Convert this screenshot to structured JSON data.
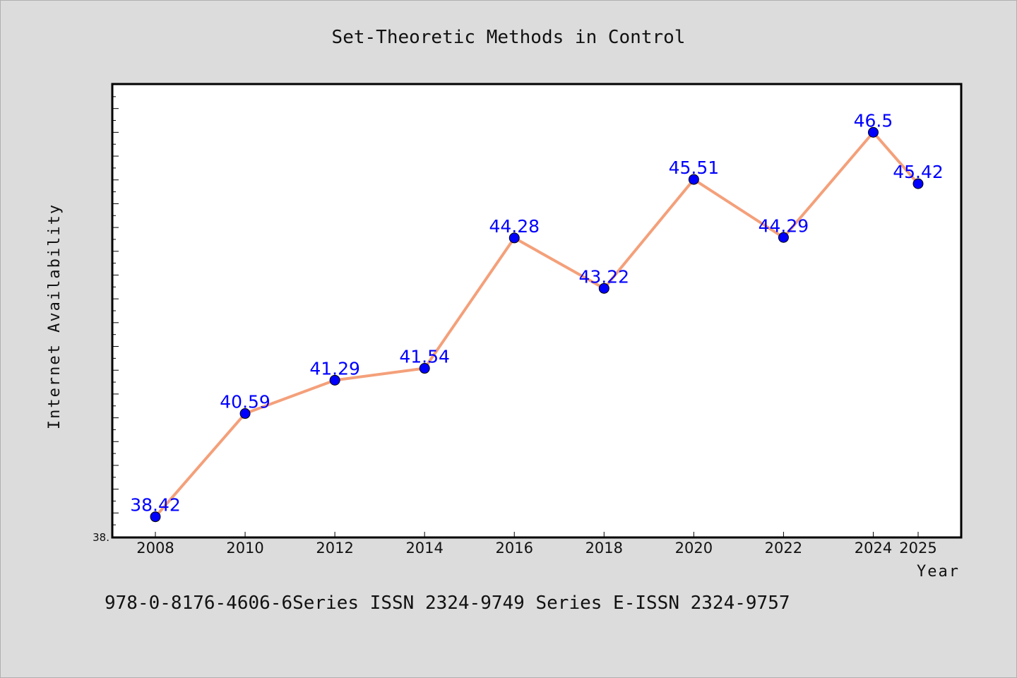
{
  "chart_data": {
    "type": "line",
    "title": "Set-Theoretic Methods in Control",
    "xlabel": "Year",
    "ylabel": "Internet Availability",
    "x": [
      "2008",
      "2010",
      "2012",
      "2014",
      "2016",
      "2018",
      "2020",
      "2022",
      "2024",
      "2025"
    ],
    "values": [
      38.42,
      40.59,
      41.29,
      41.54,
      44.28,
      43.22,
      45.51,
      44.29,
      46.5,
      45.42
    ],
    "data_labels": [
      "38.42",
      "40.59",
      "41.29",
      "41.54",
      "44.28",
      "43.22",
      "45.51",
      "44.29",
      "46.5",
      "45.42"
    ],
    "ylim": [
      38.0,
      47.5
    ],
    "y_tick_label": "38.",
    "grid": false,
    "legend": "none",
    "colors": {
      "line": "#f4a07a",
      "marker": "#0000ff",
      "label": "#0000ff",
      "plot_bg": "#ffffff",
      "page_bg": "#dcdcdc"
    }
  },
  "footer": "978-0-8176-4606-6Series ISSN 2324-9749 Series E-ISSN 2324-9757"
}
